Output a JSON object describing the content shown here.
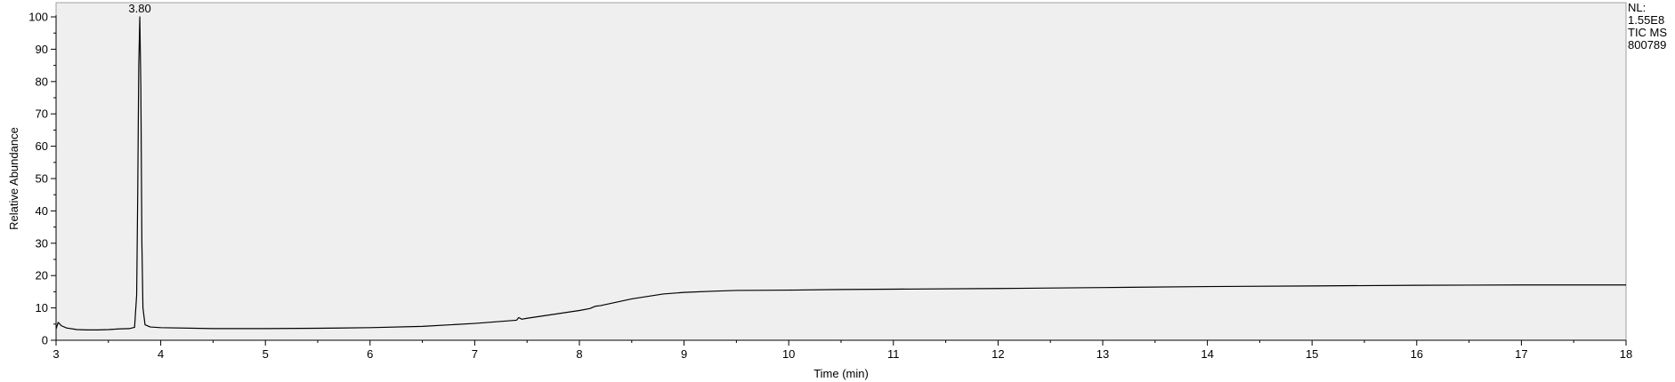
{
  "chart_data": {
    "type": "line",
    "title": "",
    "xlabel": "Time (min)",
    "ylabel": "Relative Abundance",
    "xlim": [
      3,
      18
    ],
    "ylim": [
      0,
      100
    ],
    "x_ticks": [
      3,
      4,
      5,
      6,
      7,
      8,
      9,
      10,
      11,
      12,
      13,
      14,
      15,
      16,
      17,
      18
    ],
    "y_ticks": [
      0,
      10,
      20,
      30,
      40,
      50,
      60,
      70,
      80,
      90,
      100
    ],
    "grid": false,
    "info_lines": [
      "NL:",
      "1.55E8",
      "TIC  MS",
      "800789"
    ],
    "annotations": [
      {
        "x": 3.8,
        "y": 100,
        "text": "3.80"
      }
    ],
    "series": [
      {
        "x": [
          3.0,
          3.02,
          3.05,
          3.1,
          3.2,
          3.3,
          3.4,
          3.5,
          3.6,
          3.7,
          3.75,
          3.77,
          3.78,
          3.79,
          3.8,
          3.81,
          3.82,
          3.83,
          3.85,
          3.9,
          4.0,
          4.5,
          5.0,
          5.5,
          6.0,
          6.5,
          7.0,
          7.4,
          7.42,
          7.45,
          7.5,
          8.0,
          8.1,
          8.15,
          8.2,
          8.5,
          8.8,
          9.0,
          9.3,
          9.5,
          10.0,
          10.5,
          11.0,
          12.0,
          13.0,
          14.0,
          15.0,
          16.0,
          17.0,
          17.5,
          18.0
        ],
        "values": [
          3.5,
          5.5,
          4.5,
          3.8,
          3.3,
          3.2,
          3.2,
          3.3,
          3.5,
          3.6,
          4.0,
          14.0,
          45.0,
          85.0,
          100.0,
          78.0,
          30.0,
          10.0,
          4.8,
          4.1,
          3.9,
          3.6,
          3.6,
          3.7,
          3.9,
          4.3,
          5.2,
          6.2,
          7.0,
          6.5,
          6.8,
          9.2,
          9.8,
          10.5,
          10.7,
          12.8,
          14.3,
          14.8,
          15.2,
          15.4,
          15.5,
          15.7,
          15.8,
          16.0,
          16.3,
          16.6,
          16.8,
          17.0,
          17.1,
          17.1,
          17.1
        ]
      }
    ]
  }
}
